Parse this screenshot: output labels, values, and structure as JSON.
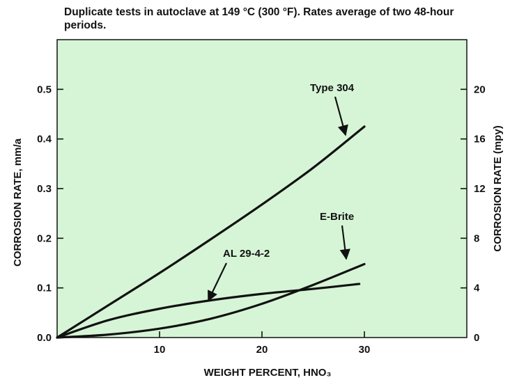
{
  "chart_data": {
    "type": "line",
    "title": "Duplicate tests in autoclave at 149 °C (300 °F). Rates average of two 48-hour periods.",
    "xlabel": "WEIGHT PERCENT, HNO₃",
    "ylabel_left": "CORROSION RATE, mm/a",
    "ylabel_right": "CORROSION RATE (mpy)",
    "xlim": [
      0,
      40
    ],
    "ylim_left": [
      0,
      0.6
    ],
    "ylim_right": [
      0,
      24
    ],
    "x_ticks": [
      10,
      20,
      30
    ],
    "y_left_ticks": [
      "0.0",
      "0.1",
      "0.2",
      "0.3",
      "0.4",
      "0.5"
    ],
    "y_right_ticks": [
      "0",
      "4",
      "8",
      "12",
      "16",
      "20"
    ],
    "grid": false,
    "background_color": "#d6f5d6",
    "series": [
      {
        "name": "Type 304",
        "x": [
          0,
          5,
          10,
          15,
          20,
          25,
          30
        ],
        "y": [
          0,
          0.065,
          0.13,
          0.198,
          0.268,
          0.342,
          0.425
        ]
      },
      {
        "name": "AL 29-4-2",
        "x": [
          0,
          5,
          10,
          15,
          20,
          25,
          29.5
        ],
        "y": [
          0,
          0.035,
          0.058,
          0.075,
          0.088,
          0.098,
          0.108
        ]
      },
      {
        "name": "E-Brite",
        "x": [
          0,
          5,
          10,
          15,
          20,
          25,
          30
        ],
        "y": [
          0,
          0.006,
          0.018,
          0.038,
          0.068,
          0.106,
          0.148
        ]
      }
    ],
    "annotations": [
      {
        "text": "Type 304",
        "points_to": "Type 304"
      },
      {
        "text": "E-Brite",
        "points_to": "E-Brite"
      },
      {
        "text": "AL 29-4-2",
        "points_to": "AL 29-4-2"
      }
    ]
  }
}
